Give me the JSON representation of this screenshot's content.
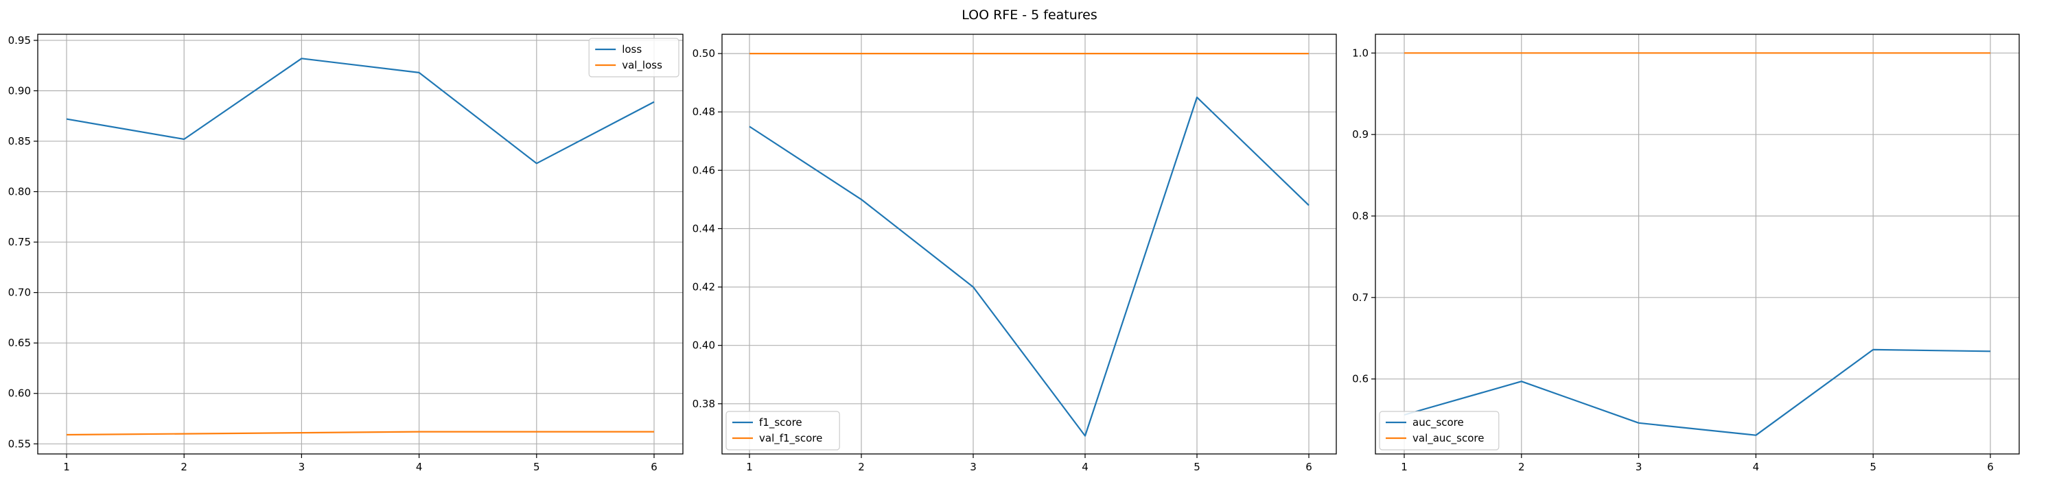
{
  "figure": {
    "title": "LOO RFE - 5 features"
  },
  "colors": {
    "series_train": "#1f77b4",
    "series_val": "#ff7f0e",
    "grid": "#b0b0b0",
    "axes": "#000000",
    "legend_border": "#cccccc"
  },
  "chart_data": [
    {
      "type": "line",
      "title": "",
      "xlabel": "",
      "ylabel": "",
      "x": [
        1,
        2,
        3,
        4,
        5,
        6
      ],
      "xticks": [
        "1",
        "2",
        "3",
        "4",
        "5",
        "6"
      ],
      "yticks": [
        "0.55",
        "0.60",
        "0.65",
        "0.70",
        "0.75",
        "0.80",
        "0.85",
        "0.90",
        "0.95"
      ],
      "ylim": [
        0.54,
        0.956
      ],
      "grid": true,
      "legend_position": "upper-right",
      "series": [
        {
          "name": "loss",
          "color": "#1f77b4",
          "values": [
            0.872,
            0.852,
            0.932,
            0.918,
            0.828,
            0.889
          ]
        },
        {
          "name": "val_loss",
          "color": "#ff7f0e",
          "values": [
            0.559,
            0.56,
            0.561,
            0.562,
            0.562,
            0.562
          ]
        }
      ]
    },
    {
      "type": "line",
      "title": "",
      "xlabel": "",
      "ylabel": "",
      "x": [
        1,
        2,
        3,
        4,
        5,
        6
      ],
      "xticks": [
        "1",
        "2",
        "3",
        "4",
        "5",
        "6"
      ],
      "yticks": [
        "0.38",
        "0.40",
        "0.42",
        "0.44",
        "0.46",
        "0.48",
        "0.50"
      ],
      "ylim": [
        0.3628,
        0.5066
      ],
      "grid": true,
      "legend_position": "lower-left",
      "series": [
        {
          "name": "f1_score",
          "color": "#1f77b4",
          "values": [
            0.475,
            0.45,
            0.42,
            0.369,
            0.485,
            0.448
          ]
        },
        {
          "name": "val_f1_score",
          "color": "#ff7f0e",
          "values": [
            0.5,
            0.5,
            0.5,
            0.5,
            0.5,
            0.5
          ]
        }
      ]
    },
    {
      "type": "line",
      "title": "",
      "xlabel": "",
      "ylabel": "",
      "x": [
        1,
        2,
        3,
        4,
        5,
        6
      ],
      "xticks": [
        "1",
        "2",
        "3",
        "4",
        "5",
        "6"
      ],
      "yticks": [
        "0.6",
        "0.7",
        "0.8",
        "0.9",
        "1.0"
      ],
      "ylim": [
        0.508,
        1.023
      ],
      "grid": true,
      "legend_position": "lower-left",
      "series": [
        {
          "name": "auc_score",
          "color": "#1f77b4",
          "values": [
            0.556,
            0.597,
            0.546,
            0.531,
            0.636,
            0.634
          ]
        },
        {
          "name": "val_auc_score",
          "color": "#ff7f0e",
          "values": [
            1.0,
            1.0,
            1.0,
            1.0,
            1.0,
            1.0
          ]
        }
      ]
    }
  ]
}
